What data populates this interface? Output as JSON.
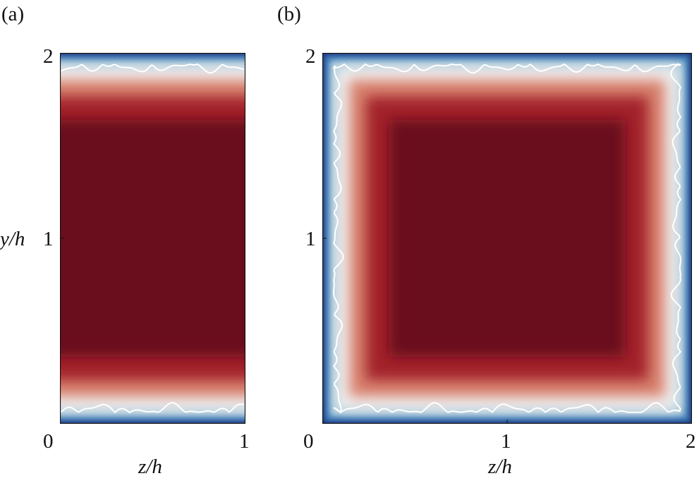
{
  "chart_data": [
    {
      "type": "heatmap",
      "panel_label": "(a)",
      "xlabel": "z/h",
      "ylabel": "y/h",
      "xlim": [
        0,
        1
      ],
      "ylim": [
        0,
        2
      ],
      "xticks": [
        "0",
        "1"
      ],
      "yticks": [
        "0",
        "1",
        "2"
      ],
      "walls": [
        "bottom",
        "top"
      ],
      "colormap": {
        "low": "#1b2f7a",
        "mid": "#f2f2f2",
        "high": "#6b0f1e"
      },
      "contour_color": "#ffffff"
    },
    {
      "type": "heatmap",
      "panel_label": "(b)",
      "xlabel": "z/h",
      "ylabel": "",
      "xlim": [
        0,
        2
      ],
      "ylim": [
        0,
        2
      ],
      "xticks": [
        "0",
        "1",
        "2"
      ],
      "yticks": [
        "1",
        "2"
      ],
      "walls": [
        "bottom",
        "top",
        "left",
        "right"
      ],
      "colormap": {
        "low": "#1b2f7a",
        "mid": "#f2f2f2",
        "high": "#6b0f1e"
      },
      "contour_color": "#ffffff"
    }
  ]
}
